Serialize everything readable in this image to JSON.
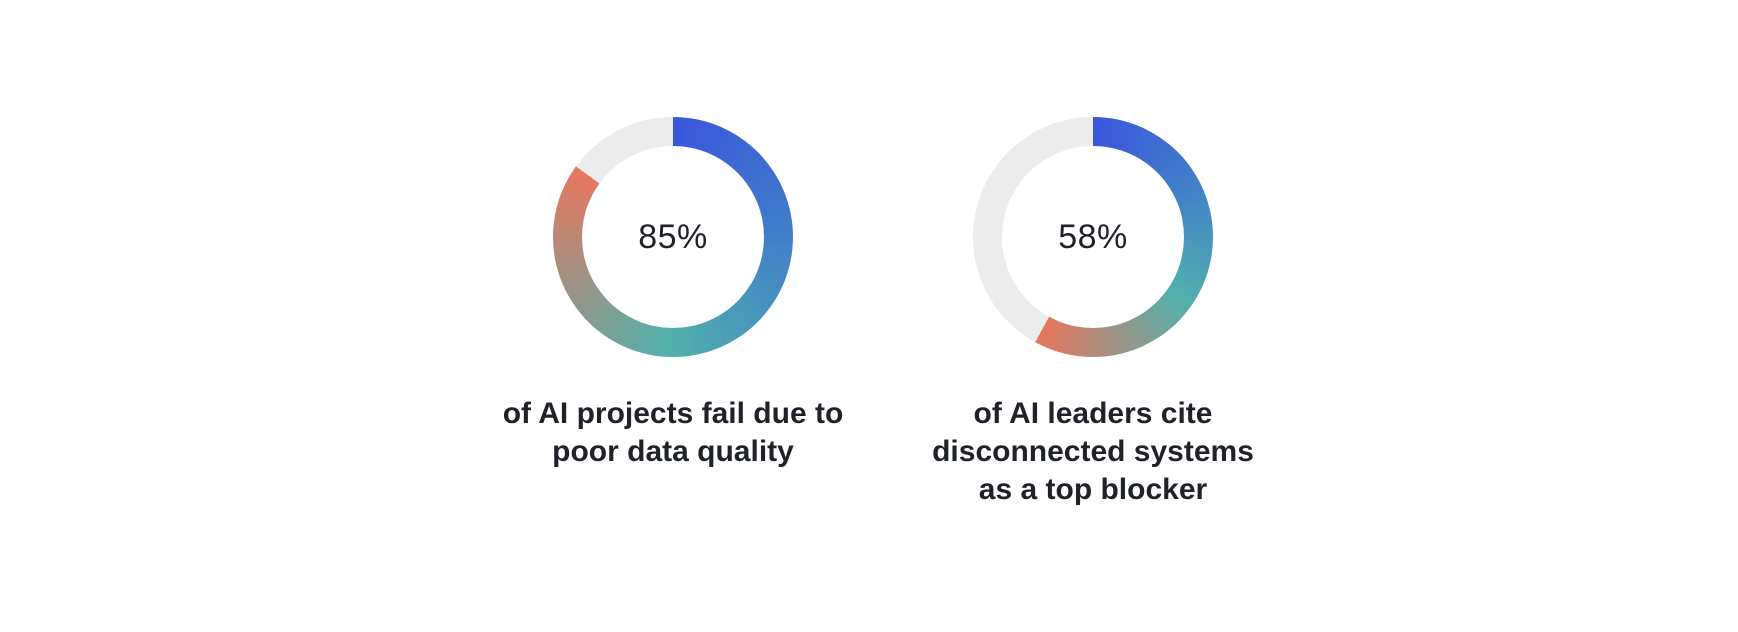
{
  "page": {
    "background": "#ffffff",
    "text_color": "#1f2329"
  },
  "chart_data": [
    {
      "type": "pie",
      "subtype": "donut",
      "value_percent": 85,
      "remainder_percent": 15,
      "center_label": "85%",
      "caption": "of AI projects fail due to\npoor data quality",
      "legend": "none",
      "start_angle_deg": 0,
      "direction": "clockwise",
      "colors": {
        "arc_gradient": [
          {
            "color": "#3b56db",
            "at": 0
          },
          {
            "color": "#4180c9",
            "at": 0.3
          },
          {
            "color": "#52b0ab",
            "at": 0.6
          },
          {
            "color": "#e8765e",
            "at": 1
          }
        ],
        "track": "#ececec",
        "center_label": "#1f2329"
      }
    },
    {
      "type": "pie",
      "subtype": "donut",
      "value_percent": 58,
      "remainder_percent": 42,
      "center_label": "58%",
      "caption": "of AI leaders cite\ndisconnected systems\nas a top blocker",
      "legend": "none",
      "start_angle_deg": 0,
      "direction": "clockwise",
      "colors": {
        "arc_gradient": [
          {
            "color": "#3b56db",
            "at": 0
          },
          {
            "color": "#4180c9",
            "at": 0.3
          },
          {
            "color": "#52b0ab",
            "at": 0.6
          },
          {
            "color": "#e8765e",
            "at": 1
          }
        ],
        "track": "#ececec",
        "center_label": "#1f2329"
      }
    }
  ]
}
